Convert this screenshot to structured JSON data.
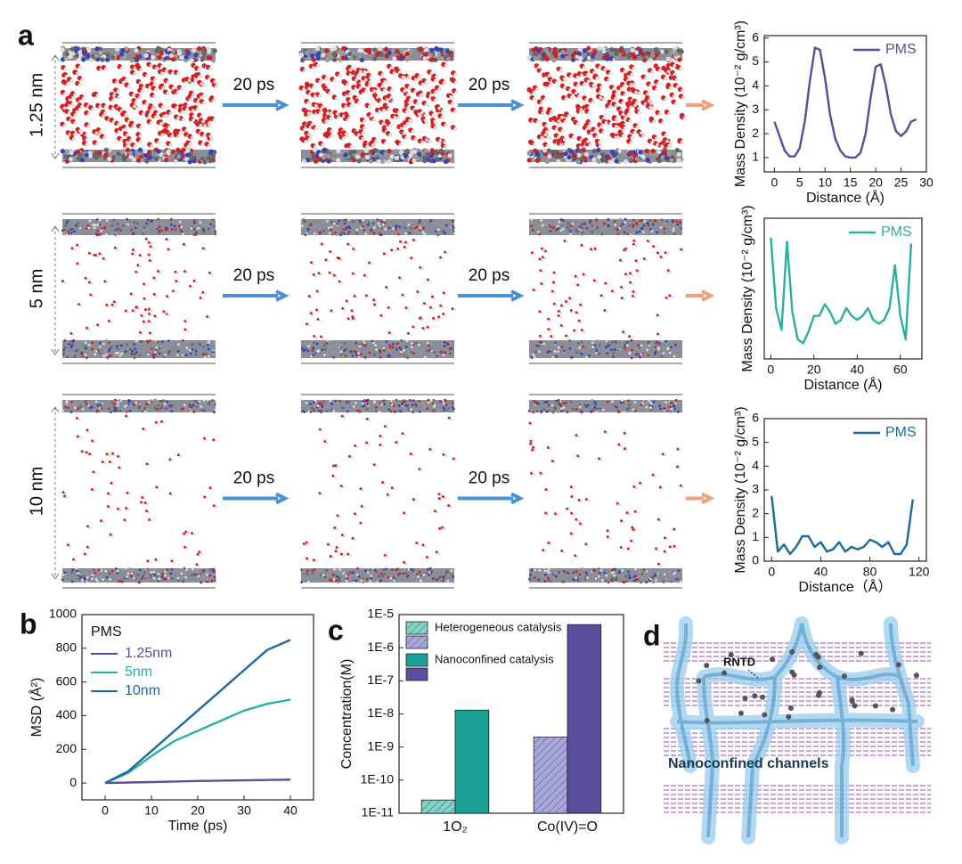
{
  "figure": {
    "panel_labels": [
      "a",
      "b",
      "c",
      "d"
    ],
    "rows": [
      {
        "label": "1.25 nm",
        "steps": [
          "20 ps",
          "20 ps"
        ]
      },
      {
        "label": "5 nm",
        "steps": [
          "20 ps",
          "20 ps"
        ]
      },
      {
        "label": "10 nm",
        "steps": [
          "20 ps",
          "20 ps"
        ]
      }
    ],
    "diagram": {
      "callout": "RNTD",
      "caption": "Nanoconfined channels"
    }
  },
  "chart_data": [
    {
      "type": "line",
      "ylabel": "Mass Density (10⁻² g/cm³)",
      "xlabel": "Distance (Å)",
      "x": [
        0,
        1,
        2,
        3,
        4,
        5,
        6,
        7,
        8,
        9,
        10,
        11,
        12,
        13,
        14,
        15,
        16,
        17,
        18,
        19,
        20,
        21,
        22,
        23,
        24,
        25,
        26,
        27,
        28
      ],
      "series": [
        {
          "name": "PMS",
          "color": "#5b4c9c",
          "values": [
            2.5,
            1.9,
            1.3,
            1.05,
            1.05,
            1.4,
            2.5,
            4.2,
            5.6,
            5.5,
            4.3,
            2.8,
            1.8,
            1.3,
            1.05,
            1.0,
            1.0,
            1.2,
            2.0,
            3.5,
            4.8,
            4.9,
            4.0,
            2.8,
            2.1,
            1.9,
            2.1,
            2.5,
            2.6
          ]
        }
      ],
      "xlim": [
        -2,
        30
      ],
      "xticks": [
        0,
        5,
        10,
        15,
        20,
        25,
        30
      ],
      "ylim": [
        0.4,
        6.1
      ],
      "yticks": [
        1,
        2,
        3,
        4,
        5,
        6
      ],
      "legend": "upper right"
    },
    {
      "type": "line",
      "ylabel": "Mass Density (10⁻² g/cm³)",
      "xlabel": "Distance (Å)",
      "x": [
        0,
        2.5,
        5,
        7.5,
        10,
        12.5,
        15,
        17.5,
        20,
        22.5,
        25,
        27.5,
        30,
        32.5,
        35,
        37.5,
        40,
        42.5,
        45,
        47.5,
        50,
        52.5,
        55,
        57.5,
        60,
        62.5,
        65
      ],
      "series": [
        {
          "name": "PMS",
          "color": "#2ab0a0",
          "values": [
            3.1,
            1.3,
            0.75,
            3.0,
            1.2,
            0.5,
            0.4,
            0.7,
            1.1,
            1.1,
            1.4,
            1.2,
            0.9,
            1.0,
            1.3,
            1.1,
            1.0,
            1.1,
            1.3,
            1.0,
            0.9,
            1.0,
            1.3,
            2.4,
            1.1,
            0.5,
            2.95
          ]
        }
      ],
      "xlim": [
        -3,
        70
      ],
      "xticks": [
        0,
        20,
        40,
        60
      ],
      "ylim": [
        0,
        3.6
      ],
      "legend": "upper right"
    },
    {
      "type": "line",
      "ylabel": "Mass Density (10⁻² g/cm³)",
      "xlabel": "Distance（Å）",
      "x": [
        0,
        5,
        10,
        15,
        20,
        25,
        30,
        35,
        40,
        45,
        50,
        55,
        60,
        65,
        70,
        75,
        80,
        85,
        90,
        95,
        100,
        105,
        110,
        115
      ],
      "series": [
        {
          "name": "PMS",
          "color": "#1a6aa0",
          "values": [
            2.75,
            0.4,
            0.7,
            0.3,
            0.6,
            1.05,
            1.05,
            0.6,
            0.8,
            0.4,
            0.5,
            0.8,
            0.4,
            0.6,
            0.5,
            0.6,
            0.9,
            0.8,
            0.6,
            0.8,
            0.3,
            0.3,
            0.7,
            2.6
          ]
        }
      ],
      "xlim": [
        -6,
        126
      ],
      "xticks": [
        0,
        40,
        80,
        120
      ],
      "ylim": [
        0,
        6
      ],
      "yticks": [
        0,
        1,
        2,
        3,
        4,
        5,
        6
      ],
      "legend": "upper right"
    },
    {
      "type": "line",
      "ylabel": "MSD (Å²)",
      "xlabel": "Time (ps)",
      "legend_title": "PMS",
      "x": [
        0,
        5,
        10,
        15,
        20,
        25,
        30,
        35,
        40
      ],
      "series": [
        {
          "name": "1.25nm",
          "color": "#5b4c9c",
          "values": [
            0,
            3,
            6,
            9,
            12,
            14,
            16,
            18,
            20
          ]
        },
        {
          "name": "5nm",
          "color": "#2ab0a0",
          "values": [
            0,
            60,
            160,
            250,
            310,
            370,
            430,
            470,
            495
          ]
        },
        {
          "name": "10nm",
          "color": "#1a6aa0",
          "values": [
            0,
            70,
            190,
            310,
            430,
            550,
            670,
            790,
            850
          ]
        }
      ],
      "xlim": [
        -5,
        45
      ],
      "xticks": [
        0,
        10,
        20,
        30,
        40
      ],
      "ylim": [
        -100,
        1000
      ],
      "yticks": [
        0,
        200,
        400,
        600,
        800,
        1000
      ],
      "legend": "upper left"
    },
    {
      "type": "bar",
      "ylabel": "Concentration(M)",
      "log_y": true,
      "categories": [
        "1O₂",
        "Co(IV)=O"
      ],
      "series": [
        {
          "name": "Heterogeneous catalysis",
          "colors": [
            "#7fd3c9",
            "#a7a6dd"
          ],
          "pattern": "hatch",
          "values": [
            2.5e-11,
            2e-09
          ]
        },
        {
          "name": "Nanoconfined catalysis",
          "colors": [
            "#1aa196",
            "#5b4c9c"
          ],
          "values": [
            1.3e-08,
            5e-06
          ]
        }
      ],
      "ylim": [
        1e-11,
        1e-05
      ],
      "yticks": [
        {
          "value": 1e-11,
          "label": "1E-11"
        },
        {
          "value": 1e-10,
          "label": "1E-10"
        },
        {
          "value": 1e-09,
          "label": "1E-9"
        },
        {
          "value": 1e-08,
          "label": "1E-8"
        },
        {
          "value": 1e-07,
          "label": "1E-7"
        },
        {
          "value": 1e-06,
          "label": "1E-6"
        },
        {
          "value": 1e-05,
          "label": "1E-5"
        }
      ],
      "legend": "upper left"
    }
  ]
}
